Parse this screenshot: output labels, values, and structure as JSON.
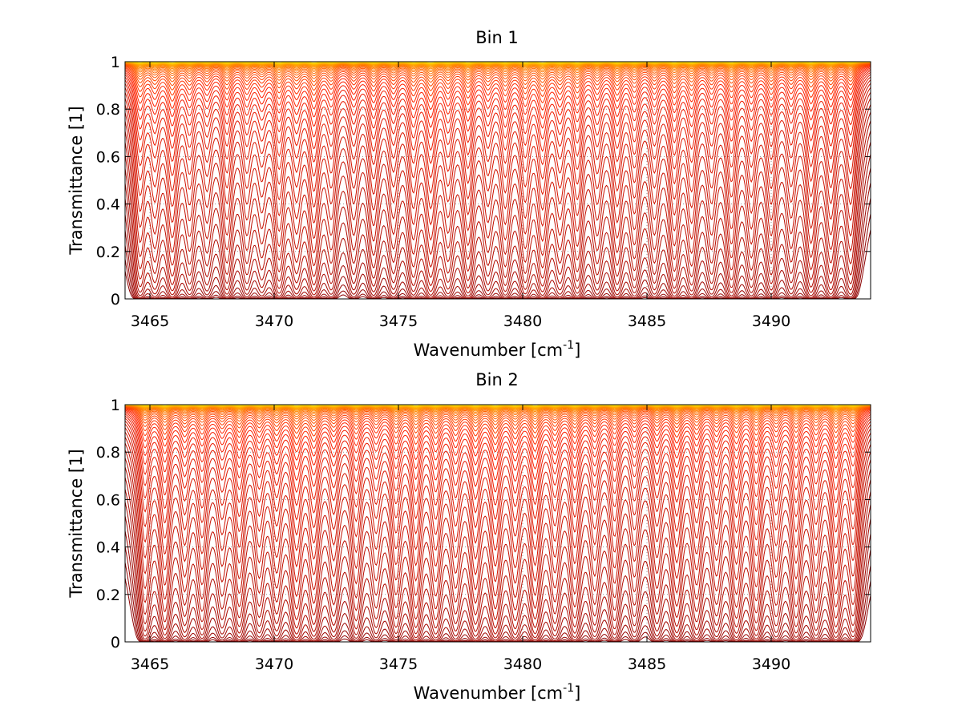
{
  "chart_data": [
    {
      "type": "line",
      "title": "Bin 1",
      "xlabel": {
        "text": "Wavenumber [cm",
        "sup": "-1",
        "suffix": "]"
      },
      "ylabel": "Transmittance [1]",
      "xlim": [
        3464,
        3494
      ],
      "ylim": [
        0,
        1
      ],
      "xticks": [
        3465,
        3470,
        3475,
        3480,
        3485,
        3490
      ],
      "yticks": [
        0,
        0.2,
        0.4,
        0.6,
        0.8,
        1
      ],
      "ytick_labels": [
        "0",
        "0.2",
        "0.4",
        "0.6",
        "0.8",
        "1"
      ],
      "grid": true,
      "colormap": [
        "#8b0000",
        "#ff2000",
        "#ffe000"
      ],
      "series_count": 45,
      "absorption_lines": [
        [
          3464.6,
          0.9
        ],
        [
          3465.2,
          0.7
        ],
        [
          3465.9,
          1.0
        ],
        [
          3466.6,
          0.6
        ],
        [
          3467.3,
          0.5
        ],
        [
          3468.1,
          0.8
        ],
        [
          3468.9,
          0.6
        ],
        [
          3469.5,
          0.5
        ],
        [
          3470.2,
          0.9
        ],
        [
          3470.9,
          0.7
        ],
        [
          3471.6,
          1.0
        ],
        [
          3472.3,
          0.6
        ],
        [
          3473.2,
          0.5
        ],
        [
          3474.0,
          0.7
        ],
        [
          3474.8,
          0.6
        ],
        [
          3475.6,
          0.8
        ],
        [
          3476.3,
          1.0
        ],
        [
          3477.0,
          0.7
        ],
        [
          3477.8,
          0.9
        ],
        [
          3478.6,
          0.6
        ],
        [
          3479.3,
          0.8
        ],
        [
          3480.1,
          0.9
        ],
        [
          3480.8,
          1.0
        ],
        [
          3481.5,
          0.7
        ],
        [
          3482.2,
          0.9
        ],
        [
          3483.0,
          0.6
        ],
        [
          3483.8,
          0.8
        ],
        [
          3484.5,
          0.7
        ],
        [
          3485.3,
          0.6
        ],
        [
          3486.1,
          0.9
        ],
        [
          3486.8,
          0.8
        ],
        [
          3487.6,
          0.6
        ],
        [
          3488.4,
          0.9
        ],
        [
          3489.2,
          0.7
        ],
        [
          3490.0,
          0.8
        ],
        [
          3490.8,
          0.6
        ],
        [
          3491.6,
          0.9
        ],
        [
          3492.4,
          0.8
        ],
        [
          3493.2,
          0.7
        ]
      ]
    },
    {
      "type": "line",
      "title": "Bin 2",
      "xlabel": {
        "text": "Wavenumber [cm",
        "sup": "-1",
        "suffix": "]"
      },
      "ylabel": "Transmittance [1]",
      "xlim": [
        3464,
        3494
      ],
      "ylim": [
        0,
        1
      ],
      "xticks": [
        3465,
        3470,
        3475,
        3480,
        3485,
        3490
      ],
      "yticks": [
        0,
        0.2,
        0.4,
        0.6,
        0.8,
        1
      ],
      "ytick_labels": [
        "0",
        "0.2",
        "0.4",
        "0.6",
        "0.8",
        "1"
      ],
      "grid": true,
      "colormap": [
        "#8b0000",
        "#ff2000",
        "#ffe000"
      ],
      "series_count": 45,
      "absorption_lines": [
        [
          3464.8,
          0.8
        ],
        [
          3465.6,
          0.9
        ],
        [
          3466.4,
          0.6
        ],
        [
          3467.1,
          0.7
        ],
        [
          3467.9,
          0.5
        ],
        [
          3468.6,
          0.8
        ],
        [
          3469.4,
          0.6
        ],
        [
          3470.1,
          0.7
        ],
        [
          3470.9,
          1.0
        ],
        [
          3471.6,
          0.9
        ],
        [
          3472.4,
          0.6
        ],
        [
          3473.3,
          0.7
        ],
        [
          3474.1,
          0.5
        ],
        [
          3474.9,
          0.8
        ],
        [
          3475.7,
          1.0
        ],
        [
          3476.5,
          0.8
        ],
        [
          3477.3,
          0.7
        ],
        [
          3478.1,
          0.9
        ],
        [
          3478.9,
          1.0
        ],
        [
          3479.7,
          0.8
        ],
        [
          3480.5,
          1.0
        ],
        [
          3481.3,
          0.7
        ],
        [
          3482.1,
          0.8
        ],
        [
          3482.9,
          0.6
        ],
        [
          3483.7,
          0.7
        ],
        [
          3484.5,
          0.5
        ],
        [
          3485.4,
          0.6
        ],
        [
          3486.2,
          0.8
        ],
        [
          3487.0,
          0.7
        ],
        [
          3487.8,
          0.6
        ],
        [
          3488.6,
          0.8
        ],
        [
          3489.4,
          0.9
        ],
        [
          3490.2,
          0.6
        ],
        [
          3491.0,
          0.8
        ],
        [
          3491.8,
          0.7
        ],
        [
          3492.6,
          1.0
        ],
        [
          3493.3,
          0.8
        ]
      ]
    }
  ]
}
